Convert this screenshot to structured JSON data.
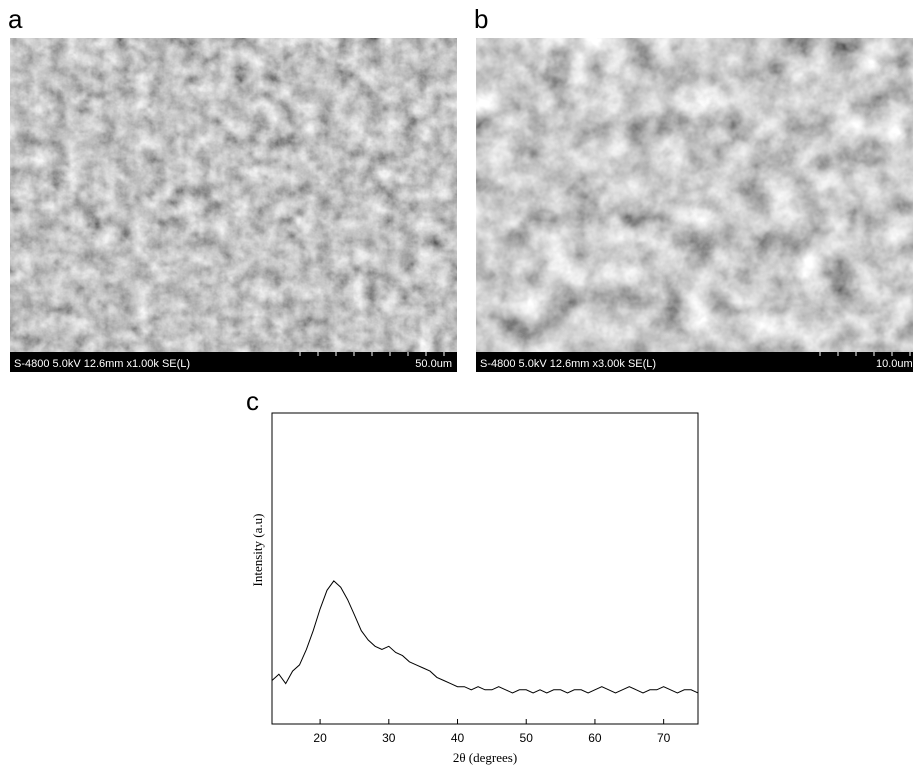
{
  "panels": [
    {
      "label": "a",
      "info": "S-4800 5.0kV 12.6mm x1.00k SE(L)",
      "scale": "50.0um"
    },
    {
      "label": "b",
      "info": "S-4800 5.0kV 12.6mm x3.00k SE(L)",
      "scale": "10.0um"
    }
  ],
  "chart_data": {
    "type": "line",
    "panel_label": "c",
    "xlabel": "2θ (degrees)",
    "ylabel": "Intensity (a.u)",
    "color": "#000000",
    "x": [
      13,
      14,
      15,
      16,
      17,
      18,
      19,
      20,
      21,
      22,
      23,
      24,
      25,
      26,
      27,
      28,
      29,
      30,
      31,
      32,
      33,
      34,
      35,
      36,
      37,
      38,
      39,
      40,
      41,
      42,
      43,
      44,
      45,
      46,
      47,
      48,
      49,
      50,
      51,
      52,
      53,
      54,
      55,
      56,
      57,
      58,
      59,
      60,
      61,
      62,
      63,
      64,
      65,
      66,
      67,
      68,
      69,
      70,
      71,
      72,
      73,
      74,
      75
    ],
    "values": [
      14,
      16,
      13,
      17,
      19,
      24,
      30,
      37,
      43,
      46,
      44,
      40,
      35,
      30,
      27,
      25,
      24,
      25,
      23,
      22,
      20,
      19,
      18,
      17,
      15,
      14,
      13,
      12,
      12,
      11,
      12,
      11,
      11,
      12,
      11,
      10,
      11,
      11,
      10,
      11,
      10,
      11,
      11,
      10,
      11,
      11,
      10,
      11,
      12,
      11,
      10,
      11,
      12,
      11,
      10,
      11,
      11,
      12,
      11,
      10,
      11,
      11,
      10
    ],
    "xlim": [
      13,
      75
    ],
    "ylim": [
      0,
      100
    ],
    "xticks": [
      20,
      30,
      40,
      50,
      60,
      70
    ]
  }
}
